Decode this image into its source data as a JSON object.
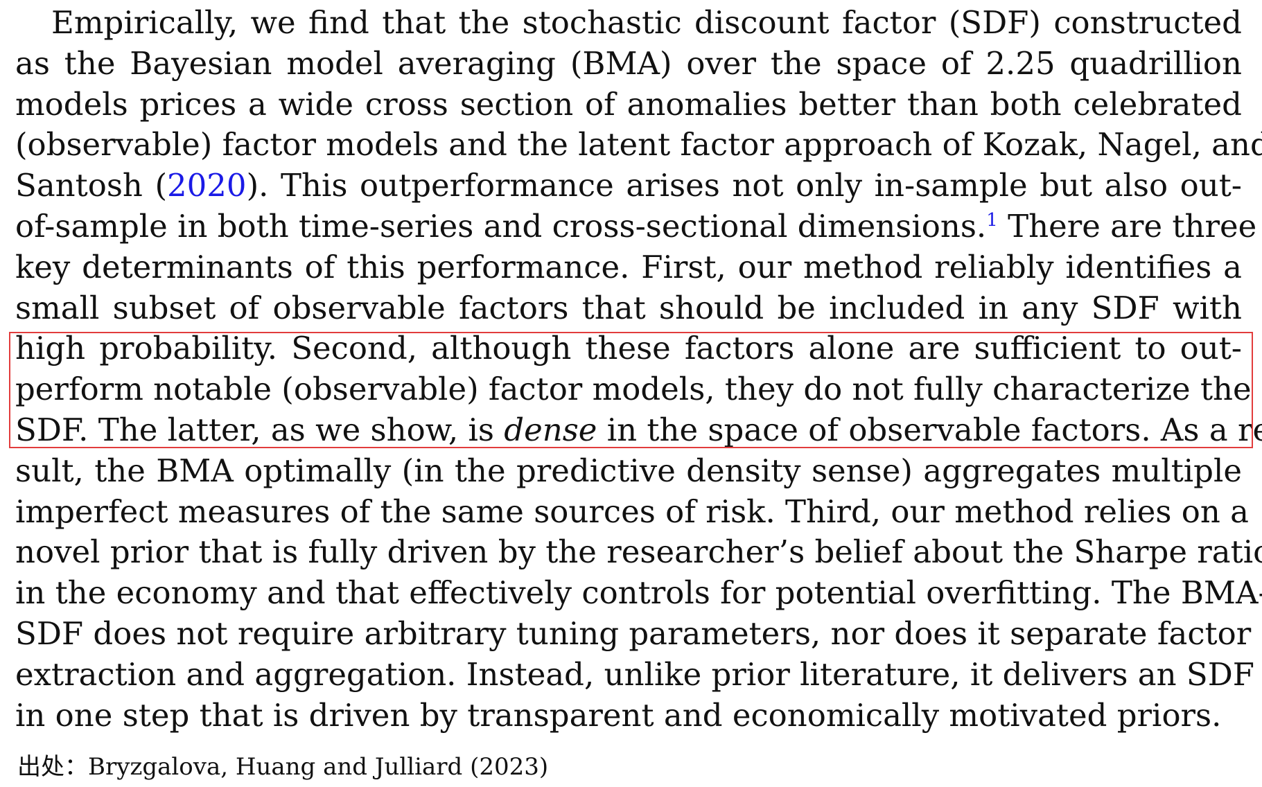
{
  "paragraph": {
    "lines": [
      "Empirically, we find that the stochastic discount factor (SDF) constructed",
      "as the Bayesian model averaging (BMA) over the space of 2.25 quadrillion",
      "models prices a wide cross section of anomalies better than both celebrated",
      "(observable) factor models and the latent factor approach of Kozak, Nagel, and",
      {
        "before": "Santosh (",
        "citation": "2020",
        "after": "). This outperformance arises not only in-sample but also out-"
      },
      {
        "before": "of-sample in both time-series and cross-sectional dimensions.",
        "footnote": "1",
        "after": " There are three"
      },
      "key determinants of this performance. First, our method reliably identifies a",
      "small subset of observable factors that should be included in any SDF with",
      "high probability. Second, although these factors alone are sufficient to out-",
      "perform notable (observable) factor models, they do not fully characterize the",
      {
        "before": "SDF. The latter, as we show, is ",
        "emphasis": "dense",
        "after": " in the space of observable factors. As a re-"
      },
      "sult, the BMA optimally (in the predictive density sense) aggregates multiple",
      "imperfect measures of the same sources of risk. Third, our method relies on a",
      "novel prior that is fully driven by the researcher’s belief about the Sharpe ratio",
      "in the economy and that effectively controls for potential overfitting. The BMA-",
      "SDF does not require arbitrary tuning parameters, nor does it separate factor",
      "extraction and aggregation. Instead, unlike prior literature, it delivers an SDF",
      "in one step that is driven by transparent and economically motivated priors."
    ]
  },
  "highlight": {
    "color": "#e23c3c",
    "covers_lines": [
      9,
      10,
      11
    ]
  },
  "source": {
    "label": "出处：",
    "reference": "Bryzgalova, Huang and Julliard (2023)"
  },
  "colors": {
    "text": "#111111",
    "link": "#1a1ae6",
    "highlight_border": "#e23c3c",
    "background": "#ffffff"
  }
}
